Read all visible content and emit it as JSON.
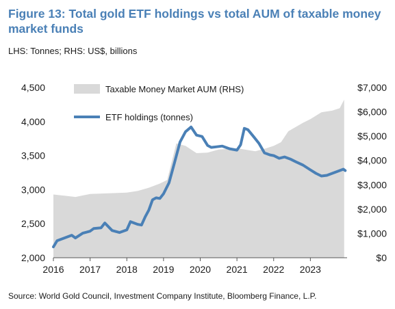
{
  "figure": {
    "title": "Figure 13: Total gold ETF holdings vs total AUM of taxable money market funds",
    "subtitle": "LHS: Tonnes; RHS: US$, billions",
    "source": "Source: World Gold Council, Investment Company Institute, Bloomberg Finance, L.P."
  },
  "chart_data": {
    "type": "line",
    "x_axis": {
      "ticks": [
        "2016",
        "2017",
        "2018",
        "2019",
        "2020",
        "2021",
        "2022",
        "2023"
      ]
    },
    "left_axis": {
      "range": [
        2000,
        4500
      ],
      "ticks": [
        "2,000",
        "2,500",
        "3,000",
        "3,500",
        "4,000",
        "4,500"
      ]
    },
    "right_axis": {
      "range": [
        0,
        7000
      ],
      "ticks": [
        "$0",
        "$1,000",
        "$2,000",
        "$3,000",
        "$4,000",
        "$5,000",
        "$6,000",
        "$7,000"
      ]
    },
    "grid": false,
    "legend_placement": "top",
    "series": [
      {
        "name": "Taxable Money Market AUM (RHS)",
        "kind": "area",
        "axis": "right",
        "color": "#d9d9d9",
        "points": [
          [
            2016.0,
            2600
          ],
          [
            2016.3,
            2550
          ],
          [
            2016.6,
            2500
          ],
          [
            2016.8,
            2560
          ],
          [
            2017.0,
            2620
          ],
          [
            2017.5,
            2650
          ],
          [
            2018.0,
            2680
          ],
          [
            2018.3,
            2750
          ],
          [
            2018.6,
            2880
          ],
          [
            2018.9,
            3050
          ],
          [
            2019.1,
            3200
          ],
          [
            2019.35,
            4700
          ],
          [
            2019.6,
            4600
          ],
          [
            2019.9,
            4300
          ],
          [
            2020.2,
            4320
          ],
          [
            2020.5,
            4450
          ],
          [
            2021.0,
            4500
          ],
          [
            2021.5,
            4380
          ],
          [
            2021.8,
            4500
          ],
          [
            2022.0,
            4600
          ],
          [
            2022.2,
            4750
          ],
          [
            2022.4,
            5200
          ],
          [
            2022.8,
            5550
          ],
          [
            2023.0,
            5700
          ],
          [
            2023.3,
            5980
          ],
          [
            2023.6,
            6050
          ],
          [
            2023.8,
            6150
          ],
          [
            2023.92,
            6500
          ]
        ]
      },
      {
        "name": "ETF holdings (tonnes)",
        "kind": "line",
        "axis": "left",
        "color": "#4a80b6",
        "points": [
          [
            2016.0,
            2160
          ],
          [
            2016.1,
            2250
          ],
          [
            2016.3,
            2290
          ],
          [
            2016.5,
            2330
          ],
          [
            2016.6,
            2290
          ],
          [
            2016.8,
            2360
          ],
          [
            2017.0,
            2390
          ],
          [
            2017.1,
            2430
          ],
          [
            2017.3,
            2440
          ],
          [
            2017.4,
            2510
          ],
          [
            2017.6,
            2400
          ],
          [
            2017.8,
            2370
          ],
          [
            2018.0,
            2410
          ],
          [
            2018.1,
            2530
          ],
          [
            2018.3,
            2490
          ],
          [
            2018.4,
            2480
          ],
          [
            2018.5,
            2600
          ],
          [
            2018.6,
            2700
          ],
          [
            2018.7,
            2850
          ],
          [
            2018.8,
            2880
          ],
          [
            2018.9,
            2870
          ],
          [
            2019.0,
            2940
          ],
          [
            2019.15,
            3100
          ],
          [
            2019.3,
            3400
          ],
          [
            2019.45,
            3700
          ],
          [
            2019.6,
            3850
          ],
          [
            2019.75,
            3920
          ],
          [
            2019.9,
            3800
          ],
          [
            2020.05,
            3780
          ],
          [
            2020.2,
            3650
          ],
          [
            2020.3,
            3620
          ],
          [
            2020.45,
            3630
          ],
          [
            2020.6,
            3640
          ],
          [
            2020.8,
            3600
          ],
          [
            2021.0,
            3580
          ],
          [
            2021.1,
            3660
          ],
          [
            2021.2,
            3900
          ],
          [
            2021.3,
            3880
          ],
          [
            2021.45,
            3780
          ],
          [
            2021.6,
            3680
          ],
          [
            2021.75,
            3540
          ],
          [
            2021.9,
            3510
          ],
          [
            2022.0,
            3500
          ],
          [
            2022.15,
            3460
          ],
          [
            2022.3,
            3480
          ],
          [
            2022.45,
            3450
          ],
          [
            2022.6,
            3410
          ],
          [
            2022.8,
            3360
          ],
          [
            2023.0,
            3290
          ],
          [
            2023.15,
            3240
          ],
          [
            2023.3,
            3200
          ],
          [
            2023.45,
            3210
          ],
          [
            2023.6,
            3240
          ],
          [
            2023.75,
            3270
          ],
          [
            2023.9,
            3300
          ],
          [
            2023.95,
            3280
          ]
        ]
      }
    ]
  }
}
